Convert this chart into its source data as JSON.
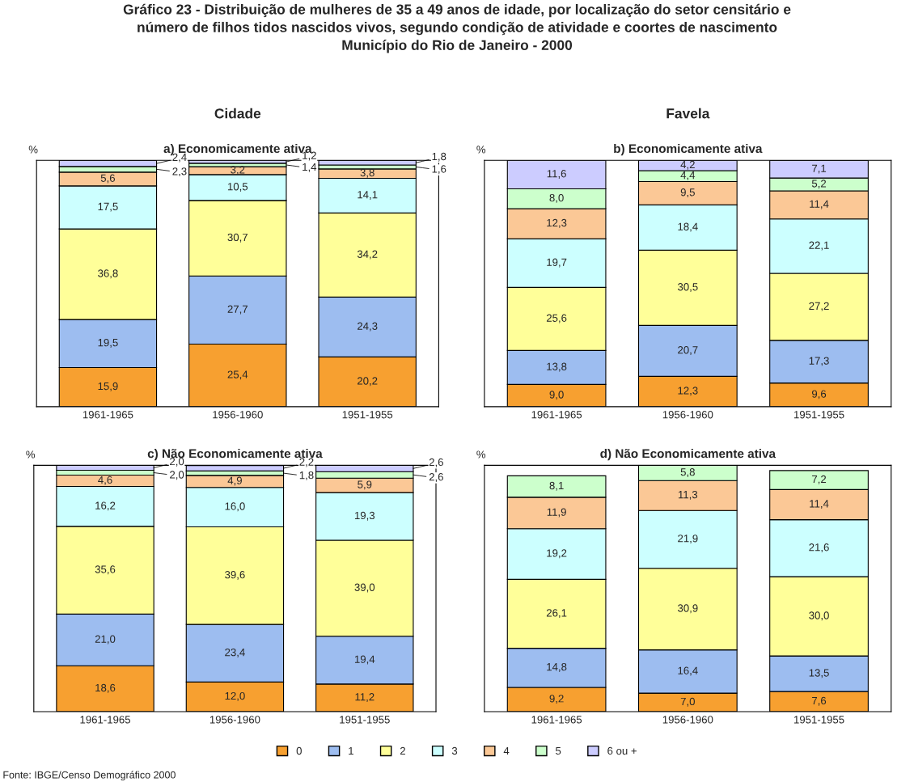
{
  "chart_data": [
    {
      "type": "bar",
      "stacked": true,
      "title": "a) Economicamente ativa",
      "ylabel": "%",
      "tick_labels": "x",
      "legend": "bottom",
      "categories": [
        "1961-1965",
        "1956-1960",
        "1951-1955"
      ],
      "annotations": [
        "Gráfico 23 - Distribuição de mulheres de 35 a 49 anos de idade, por localização do setor censitário e\nnúmero de filhos tidos nascidos vivos, segundo condição de atividade e coortes de nascimento\nMunicípio do Rio de Janeiro - 2000",
        "Cidade"
      ],
      "series": [
        {
          "name": "0",
          "color": "#f7a030",
          "values": [
            15.9,
            25.4,
            20.2
          ],
          "value_labels": [
            "15,9",
            "25,4",
            "20,2"
          ]
        },
        {
          "name": "1",
          "color": "#9dbdf0",
          "values": [
            19.5,
            27.7,
            24.3
          ],
          "value_labels": [
            "19,5",
            "27,7",
            "24,3"
          ]
        },
        {
          "name": "2",
          "color": "#ffff99",
          "values": [
            36.8,
            30.7,
            34.2
          ],
          "value_labels": [
            "36,8",
            "30,7",
            "34,2"
          ]
        },
        {
          "name": "3",
          "color": "#ccffff",
          "values": [
            17.5,
            10.5,
            14.1
          ],
          "value_labels": [
            "17,5",
            "10,5",
            "14,1"
          ]
        },
        {
          "name": "4",
          "color": "#fbc896",
          "values": [
            5.6,
            3.2,
            3.8
          ],
          "value_labels": [
            "5,6",
            "3,2",
            "3,8"
          ]
        },
        {
          "name": "5",
          "color": "#ccffcc",
          "values": [
            2.3,
            1.4,
            1.6
          ],
          "value_labels": [
            "2,3",
            "1,4",
            "1,6"
          ]
        },
        {
          "name": "6 ou +",
          "color": "#ccccff",
          "values": [
            2.4,
            1.2,
            1.8
          ],
          "value_labels": [
            "2,4",
            "1,2",
            "1,8"
          ]
        }
      ]
    },
    {
      "type": "bar",
      "stacked": true,
      "title": "b) Economicamente ativa",
      "ylabel": "%",
      "tick_labels": "x",
      "categories": [
        "1961-1965",
        "1956-1960",
        "1951-1955"
      ],
      "annotations": [
        "Favela"
      ],
      "series": [
        {
          "color": "#f7a030",
          "values": [
            9.0,
            12.3,
            9.6
          ],
          "value_labels": [
            "9,0",
            "12,3",
            "9,6"
          ]
        },
        {
          "color": "#9dbdf0",
          "values": [
            13.8,
            20.7,
            17.3
          ],
          "value_labels": [
            "13,8",
            "20,7",
            "17,3"
          ]
        },
        {
          "color": "#ffff99",
          "values": [
            25.6,
            30.5,
            27.2
          ],
          "value_labels": [
            "25,6",
            "30,5",
            "27,2"
          ]
        },
        {
          "color": "#ccffff",
          "values": [
            19.7,
            18.4,
            22.1
          ],
          "value_labels": [
            "19,7",
            "18,4",
            "22,1"
          ]
        },
        {
          "color": "#fbc896",
          "values": [
            12.3,
            9.5,
            11.4
          ],
          "value_labels": [
            "12,3",
            "9,5",
            "11,4"
          ]
        },
        {
          "color": "#ccffcc",
          "values": [
            8.0,
            4.4,
            5.2
          ],
          "value_labels": [
            "8,0",
            "4,4",
            "5,2"
          ]
        },
        {
          "color": "#ccccff",
          "values": [
            11.6,
            4.2,
            7.1
          ],
          "value_labels": [
            "11,6",
            "4,2",
            "7,1"
          ]
        }
      ]
    },
    {
      "type": "bar",
      "stacked": true,
      "title": "c) Não Economicamente ativa",
      "ylabel": "%",
      "tick_labels": "x",
      "categories": [
        "1961-1965",
        "1956-1960",
        "1951-1955"
      ],
      "annotations": [
        "Fonte: IBGE/Censo Demográfico 2000"
      ],
      "series": [
        {
          "color": "#f7a030",
          "values": [
            18.6,
            12.0,
            11.2
          ],
          "value_labels": [
            "18,6",
            "12,0",
            "11,2"
          ]
        },
        {
          "color": "#9dbdf0",
          "values": [
            21.0,
            23.4,
            19.4
          ],
          "value_labels": [
            "21,0",
            "23,4",
            "19,4"
          ]
        },
        {
          "color": "#ffff99",
          "values": [
            35.6,
            39.6,
            39.0
          ],
          "value_labels": [
            "35,6",
            "39,6",
            "39,0"
          ]
        },
        {
          "color": "#ccffff",
          "values": [
            16.2,
            16.0,
            19.3
          ],
          "value_labels": [
            "16,2",
            "16,0",
            "19,3"
          ]
        },
        {
          "color": "#fbc896",
          "values": [
            4.6,
            4.9,
            5.9
          ],
          "value_labels": [
            "4,6",
            "4,9",
            "5,9"
          ]
        },
        {
          "color": "#ccffcc",
          "values": [
            2.0,
            1.8,
            2.6
          ],
          "value_labels": [
            "2,0",
            "1,8",
            "2,6"
          ]
        },
        {
          "color": "#ccccff",
          "values": [
            2.0,
            2.2,
            2.6
          ],
          "value_labels": [
            "2,0",
            "2,2",
            "2,6"
          ]
        }
      ]
    },
    {
      "type": "bar",
      "stacked": true,
      "title": "d) Não Economicamente ativa",
      "ylabel": "%",
      "tick_labels": "x",
      "categories": [
        "1961-1965",
        "1956-1960",
        "1951-1955"
      ],
      "series": [
        {
          "color": "#f7a030",
          "values": [
            9.2,
            7.0,
            7.6
          ],
          "value_labels": [
            "9,2",
            "7,0",
            "7,6"
          ]
        },
        {
          "color": "#9dbdf0",
          "values": [
            14.8,
            16.4,
            13.5
          ],
          "value_labels": [
            "14,8",
            "16,4",
            "13,5"
          ]
        },
        {
          "color": "#ffff99",
          "values": [
            26.1,
            30.9,
            30.0
          ],
          "value_labels": [
            "26,1",
            "30,9",
            "30,0"
          ]
        },
        {
          "color": "#ccffff",
          "values": [
            19.2,
            21.9,
            21.6
          ],
          "value_labels": [
            "19,2",
            "21,9",
            "21,6"
          ]
        },
        {
          "color": "#fbc896",
          "values": [
            11.9,
            11.3,
            11.4
          ],
          "value_labels": [
            "11,9",
            "11,3",
            "11,4"
          ]
        },
        {
          "color": "#ccffcc",
          "values": [
            8.1,
            5.8,
            7.2
          ],
          "value_labels": [
            "8,1",
            "5,8",
            "7,2"
          ]
        }
      ]
    }
  ]
}
